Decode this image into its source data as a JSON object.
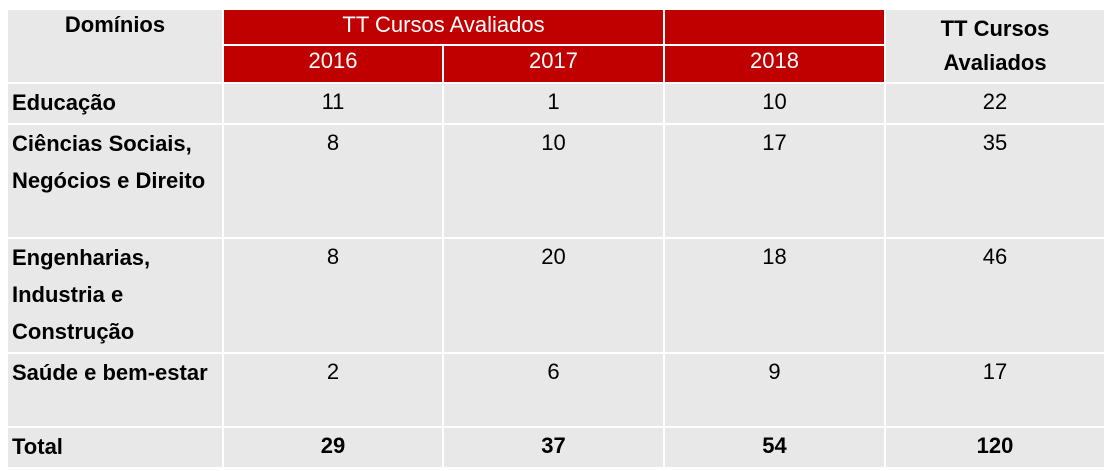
{
  "header": {
    "domain_label": "Domínios",
    "group_label": "TT Cursos Avaliados",
    "years": [
      "2016",
      "2017",
      "2018"
    ],
    "total_label": "TT Cursos Avaliados"
  },
  "table": {
    "rows": [
      {
        "label": "Educação",
        "values": [
          11,
          1,
          10,
          22
        ]
      },
      {
        "label": "Ciências Sociais, Negócios e Direito",
        "values": [
          8,
          10,
          17,
          35
        ]
      },
      {
        "label": "Engenharias, Industria e Construção",
        "values": [
          8,
          20,
          18,
          46
        ]
      },
      {
        "label": "Saúde e bem-estar",
        "values": [
          2,
          6,
          9,
          17
        ]
      }
    ],
    "total": {
      "label": "Total",
      "values": [
        29,
        37,
        54,
        120
      ]
    }
  }
}
